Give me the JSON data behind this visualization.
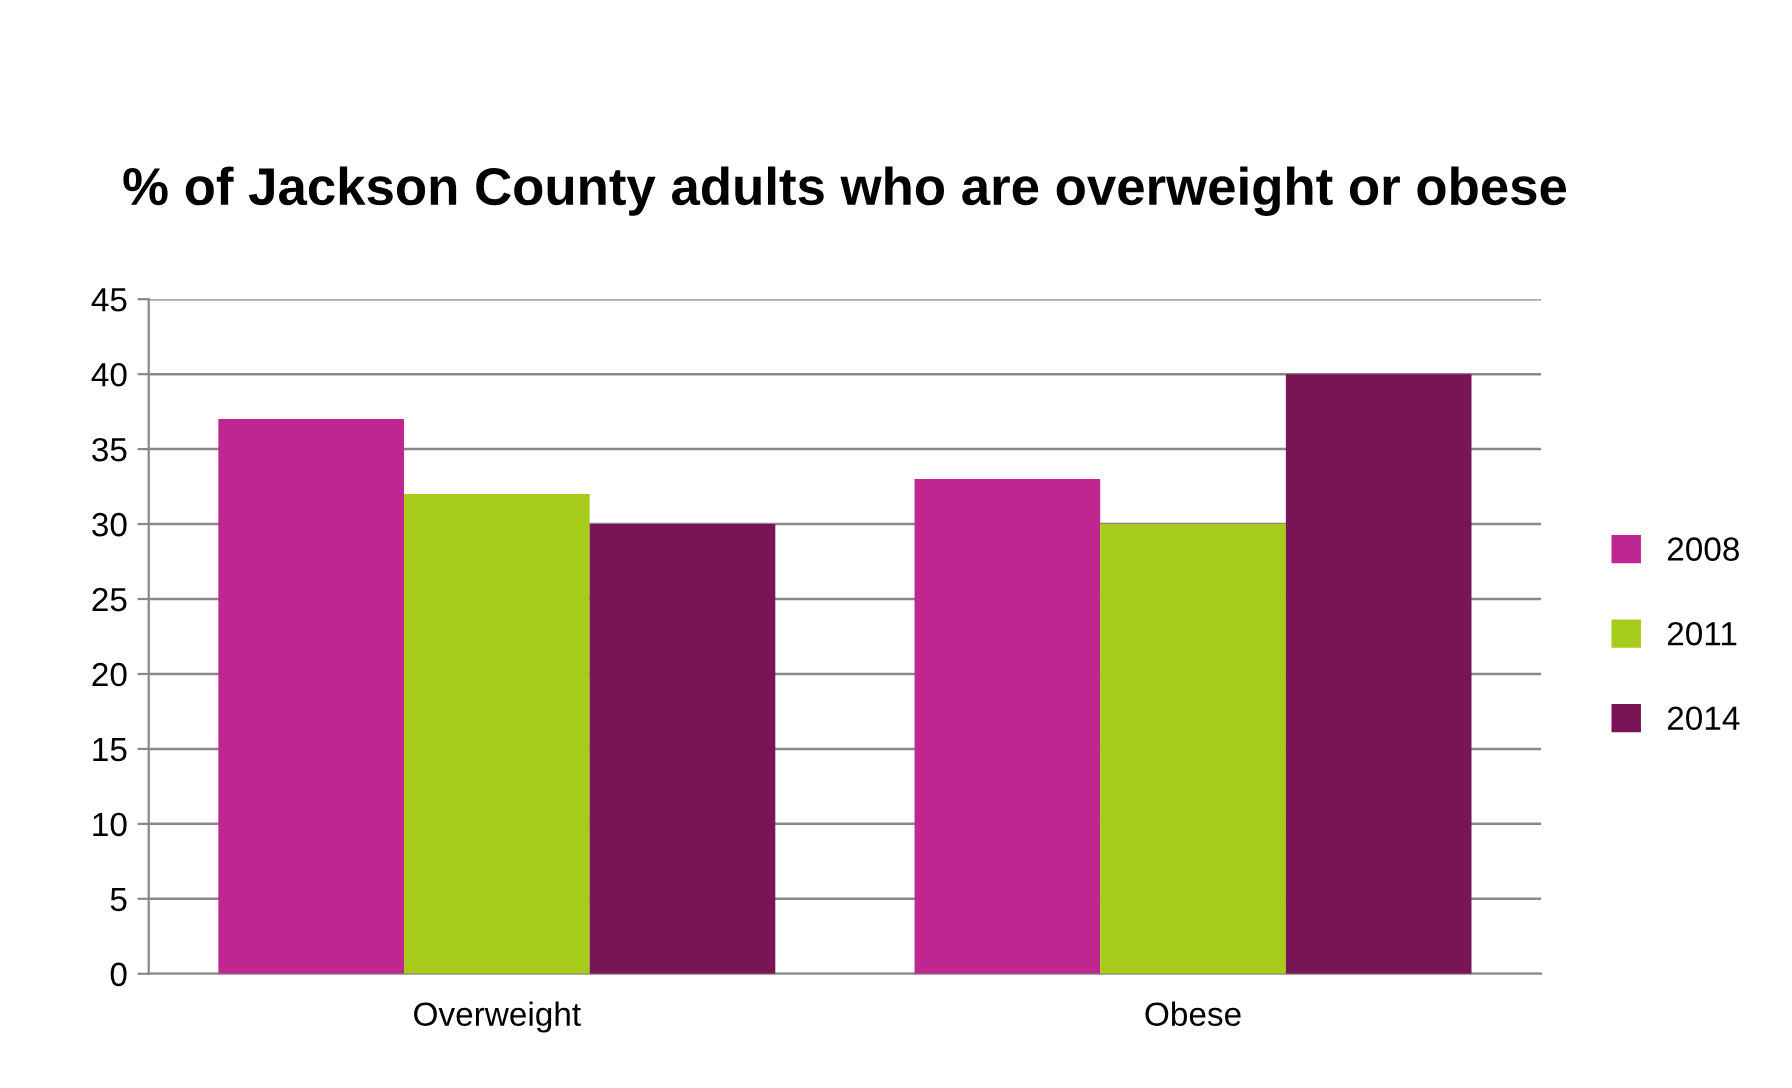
{
  "chart_data": {
    "type": "bar",
    "title": "% of Jackson County adults who are overweight or obese",
    "categories": [
      "Overweight",
      "Obese"
    ],
    "series": [
      {
        "name": "2008",
        "color": "#c0268f",
        "values": [
          37,
          33
        ]
      },
      {
        "name": "2011",
        "color": "#a6cb1a",
        "values": [
          32,
          30
        ]
      },
      {
        "name": "2014",
        "color": "#7a1555",
        "values": [
          30,
          40
        ]
      }
    ],
    "ylim": [
      0,
      45
    ],
    "yticks": [
      0,
      5,
      10,
      15,
      20,
      25,
      30,
      35,
      40,
      45
    ],
    "grid": "y",
    "legend": "right"
  }
}
